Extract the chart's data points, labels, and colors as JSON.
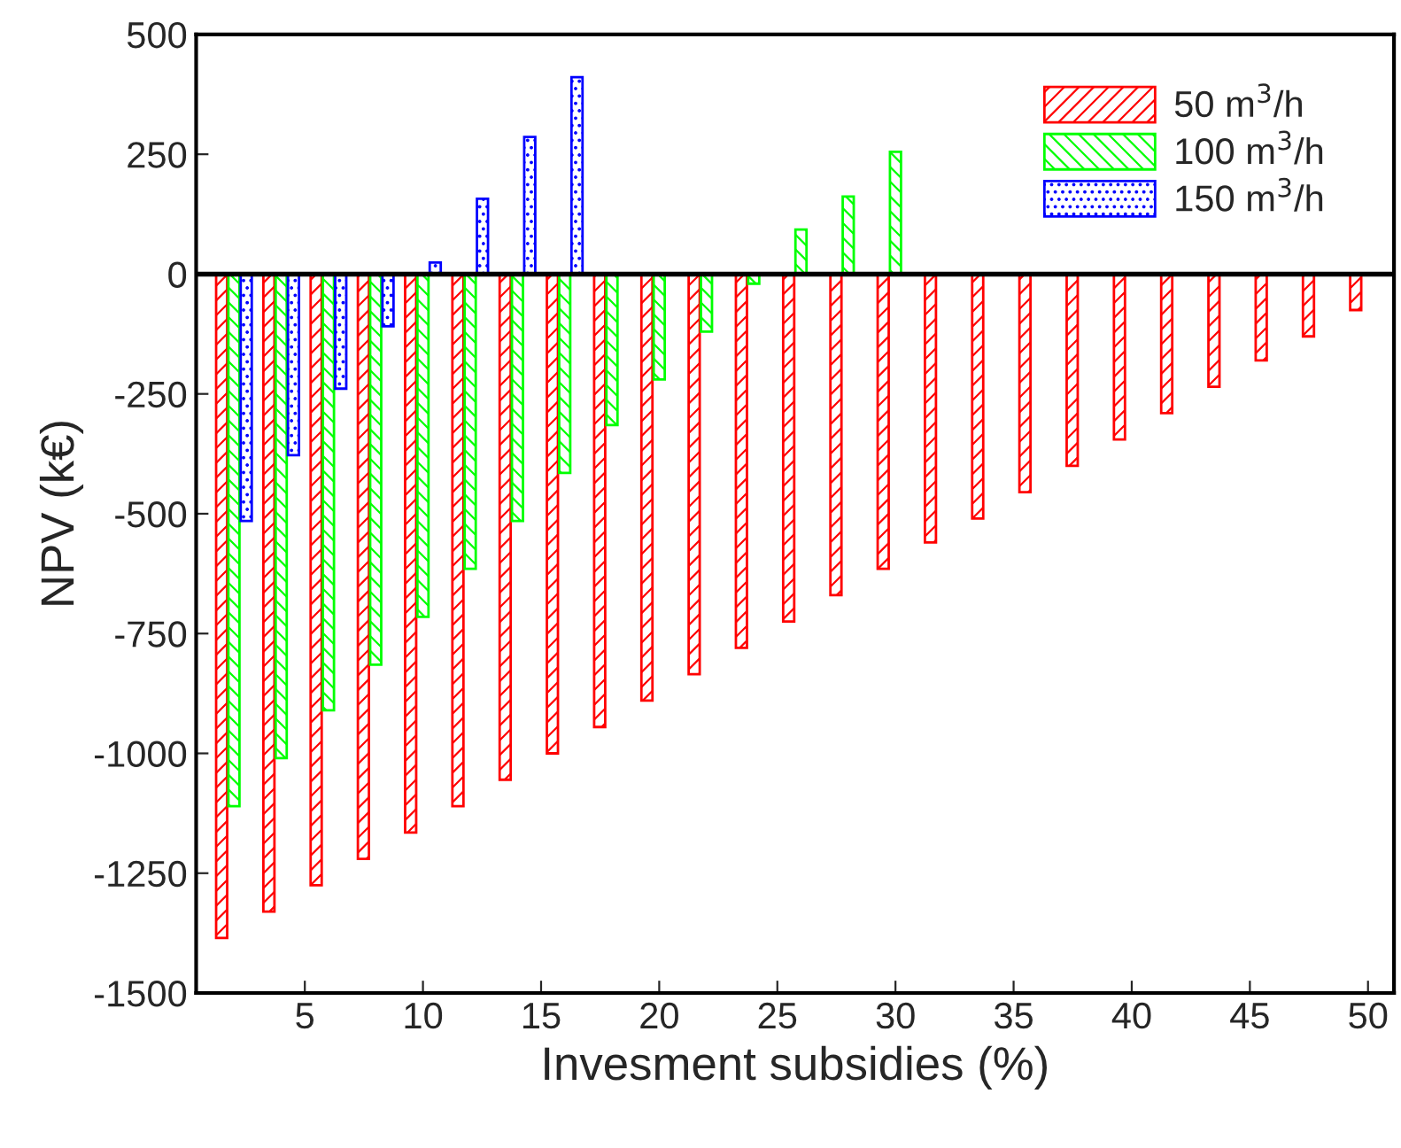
{
  "chart_data": {
    "type": "bar",
    "xlabel": "Invesment subsidies (%)",
    "ylabel": "NPV (k€)",
    "xlim": [
      0.4,
      51.1
    ],
    "xticks": [
      5,
      10,
      15,
      20,
      25,
      30,
      35,
      40,
      45,
      50
    ],
    "ylim": [
      -1500,
      500
    ],
    "yticks": [
      -1500,
      -1250,
      -1000,
      -750,
      -500,
      -250,
      0,
      250,
      500
    ],
    "legend": "top right",
    "grid": false,
    "ref_lines": [
      {
        "axis": "y",
        "value": 0,
        "color": "#000000"
      }
    ],
    "series": [
      {
        "name": "50 m$^{3}$/h",
        "color": "#ff0000",
        "x": [
          2,
          4,
          6,
          8,
          10,
          12,
          14,
          16,
          18,
          20,
          22,
          24,
          26,
          28,
          30,
          32,
          34,
          36,
          38,
          40,
          42,
          44,
          46,
          48,
          50
        ],
        "values": [
          -1385,
          -1330,
          -1275,
          -1220,
          -1165,
          -1110,
          -1055,
          -1000,
          -945,
          -890,
          -835,
          -780,
          -725,
          -670,
          -615,
          -560,
          -510,
          -455,
          -400,
          -345,
          -290,
          -235,
          -180,
          -130,
          -75
        ]
      },
      {
        "name": "100 m$^{3}$/h",
        "color": "#00ff00",
        "x": [
          2,
          4,
          6,
          8,
          10,
          12,
          14,
          16,
          18,
          20,
          22,
          24,
          26,
          28,
          30
        ],
        "values": [
          -1110,
          -1010,
          -910,
          -815,
          -715,
          -615,
          -515,
          -415,
          -315,
          -220,
          -120,
          -20,
          93,
          162,
          255
        ]
      },
      {
        "name": "150 m$^{3}$/h",
        "color": "#0000ff",
        "x": [
          2,
          4,
          6,
          8,
          10,
          12,
          14,
          16
        ],
        "values": [
          -515,
          -378,
          -239,
          -109,
          24,
          157,
          286,
          411
        ]
      }
    ]
  }
}
